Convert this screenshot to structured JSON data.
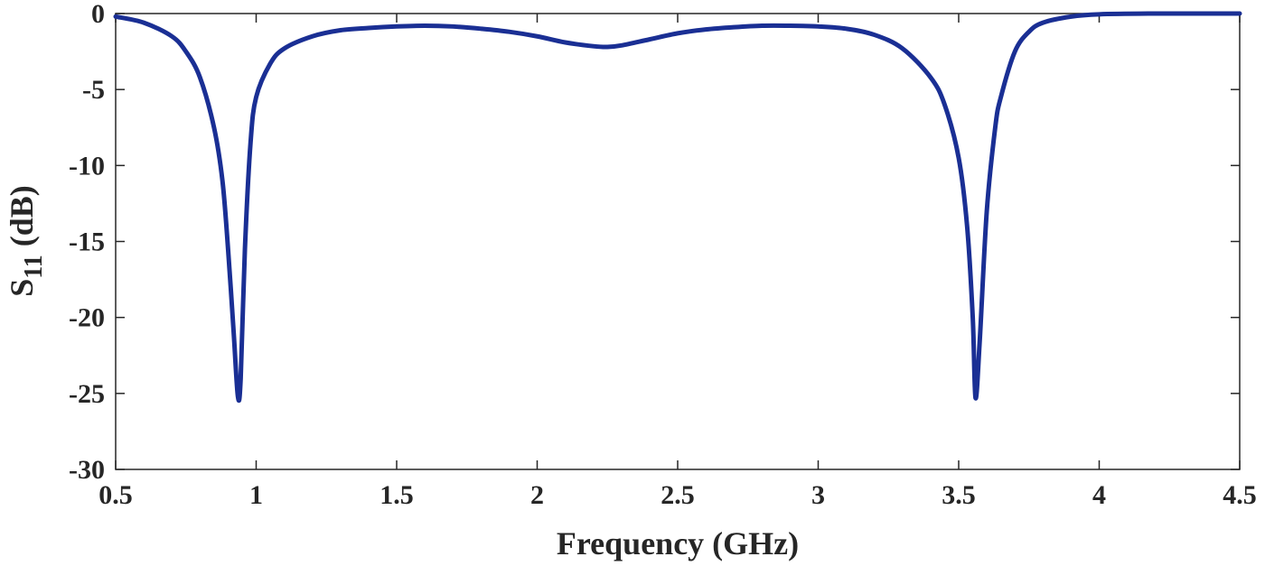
{
  "chart_data": {
    "type": "line",
    "xlabel": "Frequency (GHz)",
    "ylabel": {
      "main": "S",
      "subscript": "11",
      "suffix": " (dB)"
    },
    "xlim": [
      0.5,
      4.5
    ],
    "ylim": [
      -30,
      0
    ],
    "xticks": [
      0.5,
      1,
      1.5,
      2,
      2.5,
      3,
      3.5,
      4,
      4.5
    ],
    "xtick_labels": [
      "0.5",
      "1",
      "1.5",
      "2",
      "2.5",
      "3",
      "3.5",
      "4",
      "4.5"
    ],
    "yticks": [
      0,
      -5,
      -10,
      -15,
      -20,
      -25,
      -30
    ],
    "ytick_labels": [
      "0",
      "-5",
      "-10",
      "-15",
      "-20",
      "-25",
      "-30"
    ],
    "grid": false,
    "line_color": "#1a2f94",
    "series": [
      {
        "x": [
          0.5,
          0.6,
          0.7,
          0.75,
          0.8,
          0.85,
          0.88,
          0.9,
          0.92,
          0.935,
          0.945,
          0.96,
          0.98,
          1.0,
          1.05,
          1.1,
          1.2,
          1.3,
          1.4,
          1.5,
          1.6,
          1.7,
          1.8,
          1.9,
          2.0,
          2.1,
          2.2,
          2.25,
          2.3,
          2.4,
          2.5,
          2.6,
          2.7,
          2.8,
          2.9,
          3.0,
          3.1,
          3.2,
          3.3,
          3.4,
          3.45,
          3.5,
          3.53,
          3.55,
          3.56,
          3.575,
          3.6,
          3.63,
          3.65,
          3.7,
          3.75,
          3.8,
          3.9,
          4.0,
          4.2,
          4.5
        ],
        "y": [
          -0.2,
          -0.6,
          -1.5,
          -2.5,
          -4.2,
          -7.5,
          -11.0,
          -15.5,
          -21.0,
          -25.2,
          -24.0,
          -15.5,
          -8.5,
          -5.5,
          -3.3,
          -2.3,
          -1.5,
          -1.1,
          -0.95,
          -0.85,
          -0.8,
          -0.85,
          -1.0,
          -1.2,
          -1.5,
          -1.9,
          -2.15,
          -2.2,
          -2.1,
          -1.7,
          -1.3,
          -1.05,
          -0.9,
          -0.8,
          -0.8,
          -0.85,
          -1.0,
          -1.4,
          -2.3,
          -4.2,
          -6.0,
          -9.5,
          -14.0,
          -20.0,
          -25.3,
          -21.5,
          -13.0,
          -7.5,
          -5.5,
          -2.5,
          -1.2,
          -0.6,
          -0.2,
          -0.05,
          0.0,
          0.0
        ]
      }
    ]
  }
}
